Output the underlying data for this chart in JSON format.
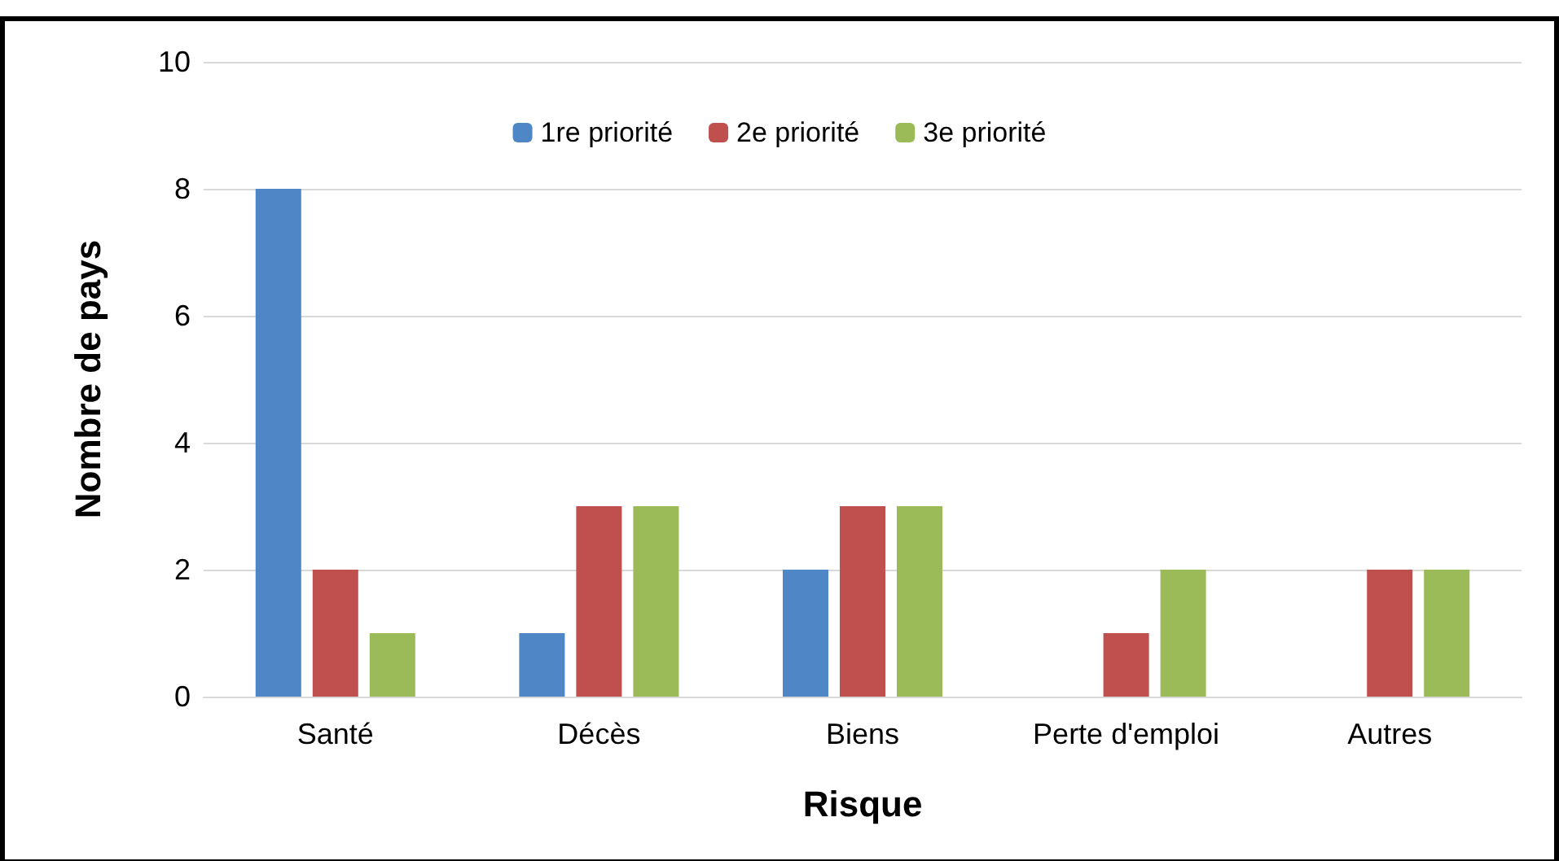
{
  "chart_data": {
    "type": "bar",
    "xlabel": "Risque",
    "ylabel": "Nombre de pays",
    "categories": [
      "Santé",
      "Décès",
      "Biens",
      "Perte d'emploi",
      "Autres"
    ],
    "series": [
      {
        "name": "1re priorité",
        "color": "#4f86c6",
        "values": [
          8,
          1,
          2,
          0,
          0
        ]
      },
      {
        "name": "2e priorité",
        "color": "#c0504d",
        "values": [
          2,
          3,
          3,
          1,
          2
        ]
      },
      {
        "name": "3e priorité",
        "color": "#9bbb59",
        "values": [
          1,
          3,
          3,
          2,
          2
        ]
      }
    ],
    "ylim": [
      0,
      10
    ],
    "yticks": [
      0,
      2,
      4,
      6,
      8,
      10
    ],
    "grid": "y",
    "legend": "top"
  }
}
